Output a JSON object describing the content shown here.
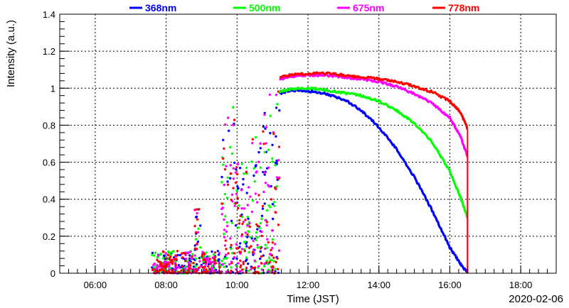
{
  "chart_data": {
    "type": "scatter",
    "title": "",
    "xlabel": "Time (JST)",
    "ylabel": "Intensity (a.u.)",
    "date_label": "2020-02-06",
    "x_unit": "hour of day (JST)",
    "xlim": [
      5.0,
      19.0
    ],
    "ylim": [
      0,
      1.4
    ],
    "x_ticks": [
      {
        "value": 6,
        "label": "06:00"
      },
      {
        "value": 8,
        "label": "08:00"
      },
      {
        "value": 10,
        "label": "10:00"
      },
      {
        "value": 12,
        "label": "12:00"
      },
      {
        "value": 14,
        "label": "14:00"
      },
      {
        "value": 16,
        "label": "16:00"
      },
      {
        "value": 18,
        "label": "18:00"
      }
    ],
    "y_ticks": [
      {
        "value": 0,
        "label": "0"
      },
      {
        "value": 0.2,
        "label": "0.2"
      },
      {
        "value": 0.4,
        "label": "0.4"
      },
      {
        "value": 0.6,
        "label": "0.6"
      },
      {
        "value": 0.8,
        "label": "0.8"
      },
      {
        "value": 1.0,
        "label": "1"
      },
      {
        "value": 1.2,
        "label": "1.2"
      },
      {
        "value": 1.4,
        "label": "1.4"
      }
    ],
    "grid": true,
    "legend_position": "top",
    "series": [
      {
        "name": "368nm",
        "color": "#0000ff",
        "clear_sky": {
          "x": [
            11.2,
            11.5,
            12.0,
            12.5,
            13.0,
            13.5,
            14.0,
            14.5,
            15.0,
            15.5,
            16.0,
            16.3,
            16.5
          ],
          "y": [
            0.97,
            0.99,
            0.985,
            0.97,
            0.94,
            0.88,
            0.79,
            0.67,
            0.52,
            0.34,
            0.14,
            0.05,
            0.0
          ]
        },
        "cloudy_scatter": {
          "x_range": [
            7.6,
            11.2
          ],
          "y_range": [
            0.0,
            0.9
          ]
        }
      },
      {
        "name": "500nm",
        "color": "#00ff00",
        "clear_sky": {
          "x": [
            11.2,
            11.5,
            12.0,
            12.5,
            13.0,
            13.5,
            14.0,
            14.5,
            15.0,
            15.5,
            16.0,
            16.3,
            16.5
          ],
          "y": [
            0.98,
            0.995,
            1.0,
            0.99,
            0.975,
            0.96,
            0.93,
            0.88,
            0.81,
            0.71,
            0.55,
            0.41,
            0.3
          ]
        },
        "cloudy_scatter": {
          "x_range": [
            7.6,
            11.2
          ],
          "y_range": [
            0.0,
            0.95
          ]
        }
      },
      {
        "name": "675nm",
        "color": "#ff00ff",
        "clear_sky": {
          "x": [
            11.2,
            11.5,
            12.0,
            12.5,
            13.0,
            13.5,
            14.0,
            14.5,
            15.0,
            15.5,
            16.0,
            16.3,
            16.5
          ],
          "y": [
            1.05,
            1.065,
            1.07,
            1.07,
            1.06,
            1.05,
            1.035,
            1.01,
            0.97,
            0.92,
            0.84,
            0.74,
            0.63
          ]
        },
        "cloudy_scatter": {
          "x_range": [
            7.6,
            11.2
          ],
          "y_range": [
            0.0,
            1.0
          ]
        }
      },
      {
        "name": "778nm",
        "color": "#ff0000",
        "clear_sky": {
          "x": [
            11.2,
            11.5,
            12.0,
            12.5,
            13.0,
            13.5,
            14.0,
            14.5,
            15.0,
            15.5,
            16.0,
            16.3,
            16.5
          ],
          "y": [
            1.06,
            1.07,
            1.08,
            1.08,
            1.07,
            1.06,
            1.05,
            1.035,
            1.01,
            0.98,
            0.93,
            0.87,
            0.78
          ]
        },
        "cloudy_scatter": {
          "x_range": [
            7.6,
            11.2
          ],
          "y_range": [
            0.0,
            1.05
          ]
        }
      }
    ]
  }
}
